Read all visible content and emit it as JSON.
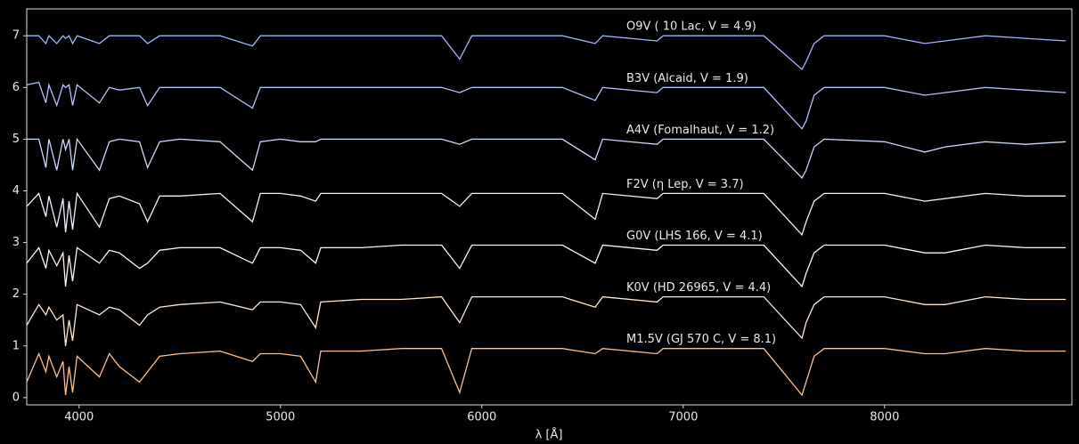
{
  "chart_data": {
    "type": "line",
    "x_label": "λ [Å]",
    "xlim": [
      3740,
      8930
    ],
    "ylim": [
      -0.14,
      7.52
    ],
    "xticks": [
      4000,
      5000,
      6000,
      7000,
      8000
    ],
    "yticks": [
      0,
      1,
      2,
      3,
      4,
      5,
      6,
      7
    ],
    "x": [
      3740,
      3800,
      3835,
      3850,
      3889,
      3920,
      3933,
      3950,
      3968,
      3990,
      4101,
      4150,
      4200,
      4300,
      4340,
      4400,
      4500,
      4700,
      4861,
      4900,
      5000,
      5100,
      5175,
      5200,
      5400,
      5600,
      5800,
      5890,
      5950,
      6200,
      6400,
      6563,
      6600,
      6870,
      6900,
      7200,
      7400,
      7590,
      7610,
      7650,
      7700,
      8000,
      8200,
      8300,
      8500,
      8700,
      8900
    ],
    "series": [
      {
        "name": "O9V ( 10 Lac, V = 4.9)",
        "color": "#9fb6ff",
        "values": [
          7.0,
          7.0,
          6.85,
          7.0,
          6.85,
          7.0,
          6.95,
          7.0,
          6.85,
          7.0,
          6.85,
          7.0,
          7.0,
          7.0,
          6.85,
          7.0,
          7.0,
          7.0,
          6.8,
          7.0,
          7.0,
          7.0,
          7.0,
          7.0,
          7.0,
          7.0,
          7.0,
          6.55,
          7.0,
          7.0,
          7.0,
          6.85,
          7.0,
          6.9,
          7.0,
          7.0,
          7.0,
          6.35,
          6.5,
          6.85,
          7.0,
          7.0,
          6.85,
          6.9,
          7.0,
          6.95,
          6.9
        ]
      },
      {
        "name": "B3V (Alcaid, V = 1.9)",
        "color": "#adc2ff",
        "values": [
          6.05,
          6.1,
          5.7,
          6.05,
          5.65,
          6.05,
          6.0,
          6.05,
          5.65,
          6.05,
          5.7,
          6.0,
          5.95,
          6.0,
          5.65,
          6.0,
          6.0,
          6.0,
          5.6,
          6.0,
          6.0,
          6.0,
          6.0,
          6.0,
          6.0,
          6.0,
          6.0,
          5.9,
          6.0,
          6.0,
          6.0,
          5.75,
          6.0,
          5.9,
          6.0,
          6.0,
          6.0,
          5.2,
          5.35,
          5.85,
          6.0,
          6.0,
          5.85,
          5.9,
          6.0,
          5.95,
          5.9
        ]
      },
      {
        "name": "A4V (Fomalhaut, V = 1.2)",
        "color": "#cbd8ff",
        "values": [
          5.0,
          5.0,
          4.45,
          5.0,
          4.4,
          5.0,
          4.8,
          5.0,
          4.4,
          5.0,
          4.4,
          4.95,
          5.0,
          4.95,
          4.45,
          4.95,
          5.0,
          4.95,
          4.4,
          4.95,
          5.0,
          4.95,
          4.95,
          5.0,
          5.0,
          5.0,
          5.0,
          4.9,
          5.0,
          5.0,
          5.0,
          4.6,
          5.0,
          4.9,
          5.0,
          5.0,
          5.0,
          4.25,
          4.4,
          4.85,
          5.0,
          4.95,
          4.75,
          4.85,
          4.95,
          4.9,
          4.95
        ]
      },
      {
        "name": "F2V (η Lep, V = 3.7)",
        "color": "#eef0ff",
        "values": [
          3.7,
          3.95,
          3.5,
          3.9,
          3.3,
          3.85,
          3.2,
          3.8,
          3.25,
          3.95,
          3.3,
          3.85,
          3.9,
          3.75,
          3.4,
          3.9,
          3.9,
          3.95,
          3.4,
          3.95,
          3.95,
          3.9,
          3.8,
          3.95,
          3.95,
          3.95,
          3.95,
          3.7,
          3.95,
          3.95,
          3.95,
          3.45,
          3.95,
          3.85,
          3.95,
          3.95,
          3.95,
          3.15,
          3.4,
          3.8,
          3.95,
          3.95,
          3.8,
          3.85,
          3.95,
          3.9,
          3.9
        ]
      },
      {
        "name": "G0V (LHS   166, V = 4.1)",
        "color": "#fff6ee",
        "values": [
          2.6,
          2.9,
          2.5,
          2.85,
          2.55,
          2.8,
          2.15,
          2.75,
          2.25,
          2.9,
          2.6,
          2.85,
          2.8,
          2.5,
          2.6,
          2.85,
          2.9,
          2.9,
          2.6,
          2.9,
          2.9,
          2.85,
          2.6,
          2.9,
          2.9,
          2.95,
          2.95,
          2.5,
          2.95,
          2.95,
          2.95,
          2.6,
          2.95,
          2.85,
          2.95,
          2.95,
          2.95,
          2.15,
          2.4,
          2.8,
          2.95,
          2.95,
          2.8,
          2.8,
          2.95,
          2.9,
          2.9
        ]
      },
      {
        "name": "K0V (HD  26965, V = 4.4)",
        "color": "#ffe6cf",
        "values": [
          1.4,
          1.8,
          1.6,
          1.75,
          1.5,
          1.6,
          1.0,
          1.5,
          1.1,
          1.8,
          1.6,
          1.75,
          1.7,
          1.4,
          1.6,
          1.75,
          1.8,
          1.85,
          1.7,
          1.85,
          1.85,
          1.8,
          1.35,
          1.85,
          1.9,
          1.9,
          1.95,
          1.45,
          1.95,
          1.95,
          1.95,
          1.75,
          1.95,
          1.85,
          1.95,
          1.95,
          1.95,
          1.15,
          1.45,
          1.8,
          1.95,
          1.95,
          1.8,
          1.8,
          1.95,
          1.9,
          1.9
        ]
      },
      {
        "name": "M1.5V (GJ   570 C, V = 8.1)",
        "color": "#ffbf85",
        "values": [
          0.3,
          0.85,
          0.5,
          0.8,
          0.4,
          0.7,
          0.05,
          0.6,
          0.1,
          0.8,
          0.4,
          0.85,
          0.6,
          0.3,
          0.5,
          0.8,
          0.85,
          0.9,
          0.7,
          0.85,
          0.85,
          0.8,
          0.3,
          0.9,
          0.9,
          0.95,
          0.95,
          0.1,
          0.95,
          0.95,
          0.95,
          0.85,
          0.95,
          0.85,
          0.95,
          0.95,
          0.95,
          0.05,
          0.3,
          0.8,
          0.95,
          0.95,
          0.85,
          0.85,
          0.95,
          0.9,
          0.9
        ]
      }
    ]
  }
}
